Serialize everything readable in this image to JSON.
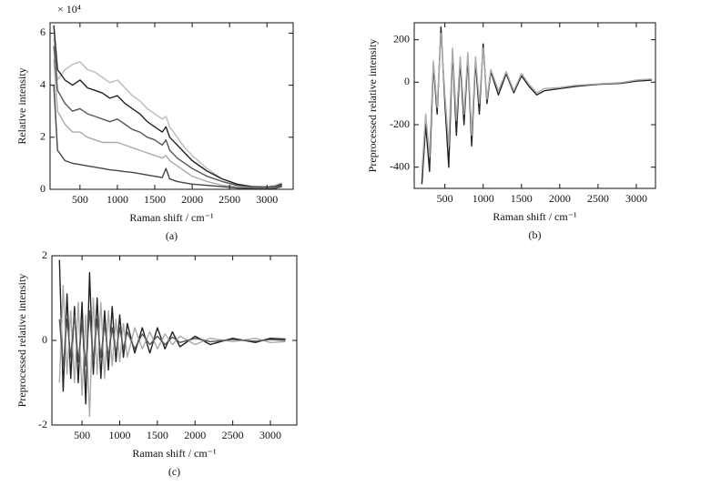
{
  "chart_data": [
    {
      "type": "line",
      "caption": "(a)",
      "x_label": "Raman shift / cm⁻¹",
      "y_label": "Relative intensity",
      "y_multiplier": "× 10⁴",
      "x": [
        150,
        200,
        300,
        400,
        500,
        600,
        700,
        800,
        900,
        1000,
        1100,
        1200,
        1300,
        1400,
        1500,
        1600,
        1650,
        1700,
        1800,
        1900,
        2000,
        2200,
        2400,
        2600,
        2800,
        3000,
        3100,
        3200
      ],
      "xlim": [
        100,
        3350
      ],
      "ylim": [
        0,
        6.4
      ],
      "xticks": [
        500,
        1000,
        1500,
        2000,
        2500,
        3000
      ],
      "yticks": [
        0,
        2,
        4,
        6
      ],
      "series": [
        {
          "color": "#bbbbbb",
          "values": [
            5.8,
            4.2,
            4.6,
            4.8,
            4.9,
            4.6,
            4.5,
            4.3,
            4.1,
            4.2,
            3.9,
            3.6,
            3.4,
            3.1,
            2.9,
            2.7,
            2.8,
            2.4,
            2.0,
            1.6,
            1.3,
            0.8,
            0.4,
            0.2,
            0.1,
            0.1,
            0.15,
            0.25
          ]
        },
        {
          "color": "#222222",
          "values": [
            6.3,
            4.6,
            4.2,
            4.0,
            4.2,
            3.9,
            3.8,
            3.7,
            3.5,
            3.6,
            3.3,
            3.1,
            2.9,
            2.6,
            2.4,
            2.2,
            2.4,
            2.0,
            1.7,
            1.4,
            1.1,
            0.7,
            0.4,
            0.2,
            0.1,
            0.08,
            0.1,
            0.2
          ]
        },
        {
          "color": "#555555",
          "values": [
            5.5,
            3.8,
            3.3,
            3.0,
            3.1,
            2.9,
            2.8,
            2.7,
            2.6,
            2.7,
            2.5,
            2.3,
            2.2,
            2.0,
            1.9,
            1.7,
            1.9,
            1.5,
            1.2,
            1.0,
            0.8,
            0.5,
            0.3,
            0.15,
            0.08,
            0.05,
            0.08,
            0.15
          ]
        },
        {
          "color": "#aaaaaa",
          "values": [
            5.0,
            3.0,
            2.5,
            2.2,
            2.2,
            2.0,
            1.9,
            1.8,
            1.8,
            1.8,
            1.7,
            1.6,
            1.5,
            1.4,
            1.3,
            1.2,
            1.3,
            1.1,
            0.9,
            0.7,
            0.5,
            0.3,
            0.15,
            0.1,
            0.05,
            0.05,
            0.05,
            0.1
          ]
        },
        {
          "color": "#444444",
          "values": [
            4.0,
            1.5,
            1.1,
            1.0,
            0.95,
            0.9,
            0.85,
            0.8,
            0.75,
            0.72,
            0.68,
            0.65,
            0.6,
            0.55,
            0.5,
            0.45,
            0.8,
            0.4,
            0.3,
            0.25,
            0.2,
            0.15,
            0.1,
            0.05,
            0.03,
            0.02,
            0.03,
            0.1
          ]
        }
      ]
    },
    {
      "type": "line",
      "caption": "(b)",
      "x_label": "Raman shift / cm⁻¹",
      "y_label": "Preprocessed relative intensity",
      "x": [
        200,
        250,
        300,
        350,
        400,
        450,
        500,
        550,
        600,
        650,
        700,
        750,
        800,
        850,
        900,
        950,
        1000,
        1050,
        1100,
        1200,
        1300,
        1400,
        1500,
        1600,
        1700,
        1800,
        2000,
        2200,
        2500,
        2800,
        3000,
        3200
      ],
      "xlim": [
        100,
        3250
      ],
      "ylim": [
        -500,
        280
      ],
      "xticks": [
        500,
        1000,
        1500,
        2000,
        2500,
        3000
      ],
      "yticks": [
        -400,
        -200,
        0,
        200
      ],
      "series": [
        {
          "color": "#222222",
          "values": [
            -480,
            -200,
            -420,
            80,
            -150,
            260,
            -100,
            -400,
            150,
            -250,
            100,
            -200,
            120,
            -300,
            100,
            -150,
            180,
            -100,
            50,
            -60,
            40,
            -50,
            30,
            -20,
            -60,
            -40,
            -30,
            -20,
            -10,
            -5,
            5,
            10
          ]
        },
        {
          "color": "#aaaaaa",
          "values": [
            -420,
            -150,
            -350,
            100,
            -120,
            230,
            -60,
            -300,
            160,
            -180,
            120,
            -150,
            140,
            -250,
            120,
            -100,
            160,
            -80,
            60,
            -40,
            50,
            -40,
            40,
            -10,
            -50,
            -30,
            -25,
            -15,
            -8,
            -2,
            10,
            15
          ]
        }
      ]
    },
    {
      "type": "line",
      "caption": "(c)",
      "x_label": "Raman shift / cm⁻¹",
      "y_label": "Preprocessed relative intensity",
      "x": [
        200,
        250,
        300,
        350,
        400,
        450,
        500,
        550,
        600,
        650,
        700,
        750,
        800,
        850,
        900,
        950,
        1000,
        1050,
        1100,
        1200,
        1300,
        1400,
        1500,
        1600,
        1700,
        1800,
        2000,
        2200,
        2500,
        2800,
        3000,
        3200
      ],
      "xlim": [
        100,
        3350
      ],
      "ylim": [
        -2,
        2
      ],
      "xticks": [
        500,
        1000,
        1500,
        2000,
        2500,
        3000
      ],
      "yticks": [
        -2,
        0,
        2
      ],
      "series": [
        {
          "color": "#222222",
          "values": [
            1.9,
            -1.2,
            1.1,
            -0.9,
            0.8,
            -1.0,
            0.9,
            -1.5,
            1.6,
            -0.8,
            1.0,
            -0.9,
            0.7,
            -0.7,
            0.8,
            -0.5,
            0.6,
            -0.4,
            0.4,
            -0.3,
            0.3,
            -0.3,
            0.3,
            -0.2,
            0.2,
            -0.15,
            0.1,
            -0.1,
            0.05,
            -0.05,
            0.05,
            0.03
          ]
        },
        {
          "color": "#aaaaaa",
          "values": [
            -1.0,
            1.3,
            -0.8,
            0.7,
            -1.0,
            0.9,
            -1.3,
            0.6,
            -1.8,
            1.0,
            -0.8,
            0.9,
            -0.9,
            0.7,
            -0.6,
            0.5,
            -0.5,
            0.4,
            -0.4,
            0.3,
            -0.2,
            0.2,
            -0.2,
            0.15,
            -0.1,
            0.1,
            -0.1,
            0.05,
            -0.03,
            0.05,
            -0.05,
            -0.03
          ]
        },
        {
          "color": "#555555",
          "values": [
            0.5,
            -0.6,
            0.5,
            -0.4,
            0.6,
            -0.5,
            0.4,
            -0.6,
            0.7,
            -0.5,
            0.5,
            -0.4,
            0.4,
            -0.4,
            0.3,
            -0.3,
            0.3,
            -0.2,
            0.2,
            -0.2,
            0.15,
            -0.1,
            0.1,
            -0.1,
            0.08,
            -0.05,
            0.05,
            -0.03,
            0.02,
            -0.02,
            0.02,
            0.0
          ]
        }
      ]
    }
  ]
}
